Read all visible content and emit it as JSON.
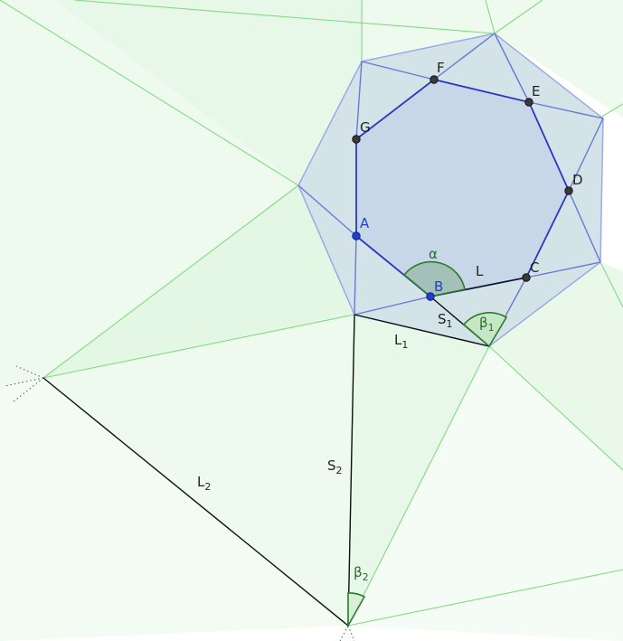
{
  "points": {
    "A": "A",
    "B": "B",
    "C": "C",
    "D": "D",
    "E": "E",
    "F": "F",
    "G": "G"
  },
  "segments": {
    "L": "L",
    "L1_main": "L",
    "L1_sub": "1",
    "S1_main": "S",
    "S1_sub": "1",
    "L2_main": "L",
    "L2_sub": "2",
    "S2_main": "S",
    "S2_sub": "2"
  },
  "angles": {
    "alpha": "α",
    "beta1_main": "β",
    "beta1_sub": "1",
    "beta2_main": "β",
    "beta2_sub": "2"
  },
  "colors": {
    "green_fill": "#e6f7e6",
    "green_line": "#7fdc7f",
    "blue_line": "#2b37c4",
    "blue_fill": "#c9d9ea",
    "light_blue_line": "#9ea8e6",
    "point_dark": "#3a3a3a",
    "point_blue": "#1f3fd0",
    "angle_green": "#2b7a2b"
  }
}
